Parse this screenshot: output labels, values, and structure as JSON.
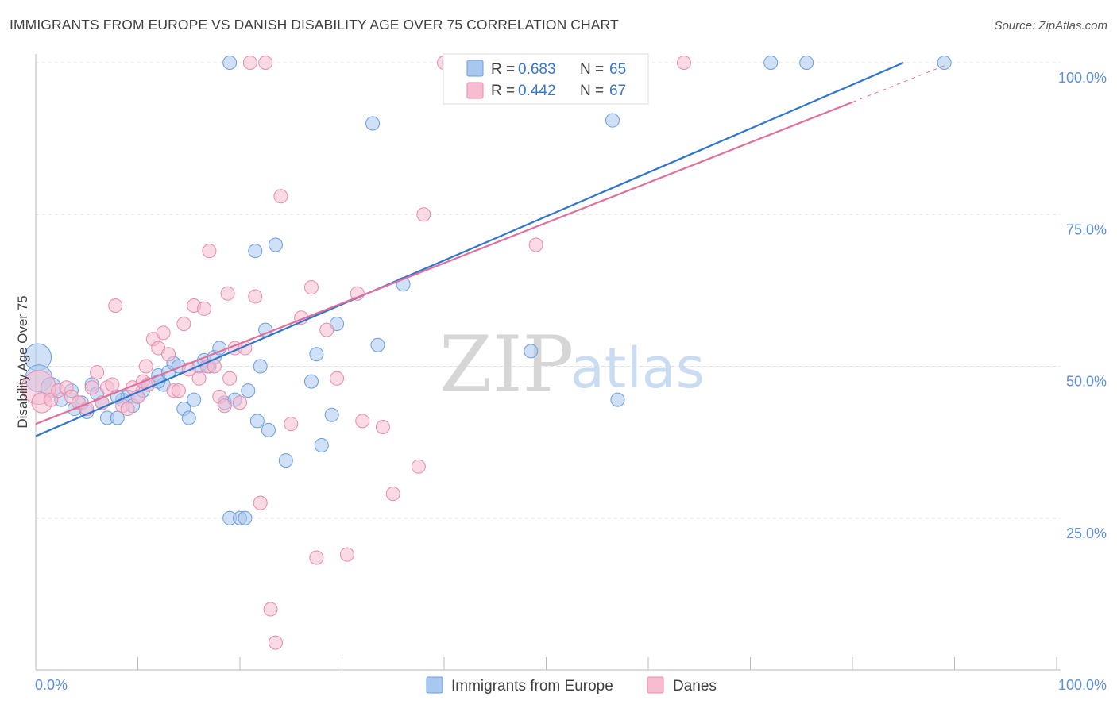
{
  "header": {
    "title": "IMMIGRANTS FROM EUROPE VS DANISH DISABILITY AGE OVER 75 CORRELATION CHART",
    "source": "Source: ZipAtlas.com"
  },
  "watermark": {
    "part1": "ZIP",
    "part2": "atlas"
  },
  "colors": {
    "blue_fill": "#a9c8f0",
    "blue_stroke": "#6a9de0",
    "blue_line": "#2f74d0",
    "pink_fill": "#f6bcd0",
    "pink_stroke": "#e98aaa",
    "pink_line": "#e0709a",
    "grid": "#dddddd",
    "axis_text": "#5b8fd6"
  },
  "legend": {
    "rows": [
      {
        "r_label": "R =",
        "r_value": "0.683",
        "n_label": "N =",
        "n_value": "65"
      },
      {
        "r_label": "R =",
        "r_value": "0.442",
        "n_label": "N =",
        "n_value": "67"
      }
    ]
  },
  "bottom_legend": {
    "series1": "Immigrants from Europe",
    "series2": "Danes"
  },
  "chart_data": {
    "type": "scatter",
    "title": "IMMIGRANTS FROM EUROPE VS DANISH DISABILITY AGE OVER 75 CORRELATION CHART",
    "xlabel": "",
    "ylabel": "Disability Age Over 75",
    "xlim": [
      0,
      100
    ],
    "ylim": [
      0,
      100
    ],
    "x_ticks": [
      "0.0%",
      "100.0%"
    ],
    "y_ticks": [
      {
        "value": 100,
        "label": "100.0%"
      },
      {
        "value": 75,
        "label": "75.0%"
      },
      {
        "value": 50,
        "label": "50.0%"
      },
      {
        "value": 25,
        "label": "25.0%"
      }
    ],
    "grid": true,
    "series": [
      {
        "name": "Immigrants from Europe",
        "r": 0.683,
        "n": 65,
        "trend": {
          "x0": 0,
          "y0": 38.5,
          "x1": 85,
          "y1": 100
        },
        "points": [
          [
            0.2,
            51.5,
            2
          ],
          [
            0.3,
            48.0,
            2
          ],
          [
            1.5,
            46.5,
            1.5
          ],
          [
            2.5,
            44.5,
            1
          ],
          [
            3.5,
            46.0,
            1
          ],
          [
            3.8,
            43.0,
            1
          ],
          [
            4.5,
            44.0,
            1
          ],
          [
            5.0,
            42.5,
            1
          ],
          [
            5.5,
            47.0,
            1
          ],
          [
            6.0,
            45.5,
            1
          ],
          [
            6.5,
            44.0,
            1
          ],
          [
            7.0,
            41.5,
            1
          ],
          [
            8.0,
            41.5,
            1
          ],
          [
            8.5,
            44.5,
            1
          ],
          [
            9.0,
            45.0,
            1
          ],
          [
            9.5,
            43.5,
            1
          ],
          [
            10.0,
            45.0,
            1
          ],
          [
            10.5,
            46.0,
            1
          ],
          [
            11.0,
            47.0,
            1
          ],
          [
            12.0,
            48.5,
            1
          ],
          [
            12.5,
            47.0,
            1
          ],
          [
            13.0,
            49.0,
            1
          ],
          [
            13.5,
            50.5,
            1
          ],
          [
            14.0,
            50.0,
            1
          ],
          [
            14.5,
            43.0,
            1
          ],
          [
            15.0,
            41.5,
            1
          ],
          [
            15.5,
            44.5,
            1
          ],
          [
            16.0,
            50.0,
            1
          ],
          [
            16.5,
            51.0,
            1
          ],
          [
            17.0,
            50.0,
            1
          ],
          [
            17.5,
            51.5,
            1
          ],
          [
            18.0,
            53.0,
            1
          ],
          [
            18.5,
            44.0,
            1
          ],
          [
            19.0,
            25.0,
            1
          ],
          [
            19.5,
            44.5,
            1
          ],
          [
            20.0,
            25.0,
            1
          ],
          [
            20.5,
            25.0,
            1
          ],
          [
            20.8,
            46.0,
            1
          ],
          [
            21.5,
            69.0,
            1
          ],
          [
            21.7,
            41.0,
            1
          ],
          [
            22.0,
            50.0,
            1
          ],
          [
            22.5,
            56.0,
            1
          ],
          [
            22.8,
            39.5,
            1
          ],
          [
            23.5,
            70.0,
            1
          ],
          [
            24.5,
            34.5,
            1
          ],
          [
            27.0,
            47.5,
            1
          ],
          [
            27.5,
            52.0,
            1
          ],
          [
            28.0,
            37.0,
            1
          ],
          [
            29.0,
            42.0,
            1
          ],
          [
            29.5,
            57.0,
            1
          ],
          [
            33.0,
            90.0,
            1
          ],
          [
            33.5,
            53.5,
            1
          ],
          [
            36.0,
            63.5,
            1
          ],
          [
            40.5,
            100,
            1
          ],
          [
            41.0,
            100,
            1
          ],
          [
            47.5,
            100,
            1
          ],
          [
            48.5,
            52.5,
            1
          ],
          [
            56.5,
            90.5,
            1
          ],
          [
            57.0,
            44.5,
            1
          ],
          [
            19.0,
            100,
            1
          ],
          [
            72.0,
            100,
            1
          ],
          [
            75.5,
            100,
            1
          ],
          [
            89.0,
            100,
            1
          ],
          [
            8.0,
            45.0,
            1
          ],
          [
            12.0,
            47.5,
            1
          ]
        ]
      },
      {
        "name": "Danes",
        "r": 0.442,
        "n": 67,
        "trend": {
          "x0": 0,
          "y0": 40.5,
          "x1": 80,
          "y1": 93.5
        },
        "trend_ext": {
          "x0": 80,
          "y0": 93.5,
          "x1": 89,
          "y1": 99.5
        },
        "points": [
          [
            0.3,
            46.5,
            2.5
          ],
          [
            0.6,
            44.0,
            1.5
          ],
          [
            1.5,
            44.5,
            1
          ],
          [
            2.2,
            46.0,
            1
          ],
          [
            3.0,
            46.5,
            1
          ],
          [
            3.5,
            45.0,
            1
          ],
          [
            4.2,
            44.0,
            1
          ],
          [
            5.0,
            43.0,
            1
          ],
          [
            5.5,
            46.5,
            1
          ],
          [
            6.0,
            49.0,
            1
          ],
          [
            6.5,
            44.0,
            1
          ],
          [
            7.0,
            46.5,
            1
          ],
          [
            7.5,
            47.0,
            1
          ],
          [
            7.8,
            60.0,
            1
          ],
          [
            8.5,
            43.5,
            1
          ],
          [
            9.0,
            43.0,
            1
          ],
          [
            9.5,
            46.5,
            1
          ],
          [
            10.0,
            45.0,
            1
          ],
          [
            10.5,
            47.5,
            1
          ],
          [
            10.8,
            50.0,
            1
          ],
          [
            11.0,
            47.0,
            1
          ],
          [
            11.5,
            54.5,
            1
          ],
          [
            12.0,
            53.0,
            1
          ],
          [
            12.5,
            55.5,
            1
          ],
          [
            13.0,
            52.0,
            1
          ],
          [
            13.5,
            46.0,
            1
          ],
          [
            14.0,
            46.0,
            1
          ],
          [
            14.5,
            57.0,
            1
          ],
          [
            15.0,
            49.5,
            1
          ],
          [
            15.5,
            60.0,
            1
          ],
          [
            16.0,
            48.0,
            1
          ],
          [
            16.5,
            59.5,
            1
          ],
          [
            16.8,
            50.0,
            1
          ],
          [
            17.0,
            69.0,
            1
          ],
          [
            17.5,
            50.0,
            1
          ],
          [
            18.0,
            45.0,
            1
          ],
          [
            18.5,
            43.5,
            1
          ],
          [
            18.8,
            62.0,
            1
          ],
          [
            19.0,
            48.0,
            1
          ],
          [
            19.5,
            53.0,
            1
          ],
          [
            20.0,
            44.0,
            1
          ],
          [
            20.5,
            53.0,
            1
          ],
          [
            21.5,
            61.5,
            1
          ],
          [
            22.0,
            27.5,
            1
          ],
          [
            23.0,
            10.0,
            1
          ],
          [
            23.5,
            4.5,
            1
          ],
          [
            24.0,
            78.0,
            1
          ],
          [
            25.0,
            40.5,
            1
          ],
          [
            26.0,
            58.0,
            1
          ],
          [
            27.0,
            63.0,
            1
          ],
          [
            27.5,
            18.5,
            1
          ],
          [
            28.5,
            56.0,
            1
          ],
          [
            29.5,
            48.0,
            1
          ],
          [
            30.5,
            19.0,
            1
          ],
          [
            31.5,
            62.0,
            1
          ],
          [
            32.0,
            41.0,
            1
          ],
          [
            34.0,
            40.0,
            1
          ],
          [
            35.0,
            29.0,
            1
          ],
          [
            37.5,
            33.5,
            1
          ],
          [
            38.0,
            75.0,
            1
          ],
          [
            49.0,
            70.0,
            1
          ],
          [
            21.0,
            100,
            1
          ],
          [
            22.5,
            100,
            1
          ],
          [
            40.0,
            100,
            1
          ],
          [
            46.5,
            100,
            1
          ],
          [
            47.0,
            100,
            1
          ],
          [
            63.5,
            100,
            1
          ]
        ]
      }
    ]
  }
}
